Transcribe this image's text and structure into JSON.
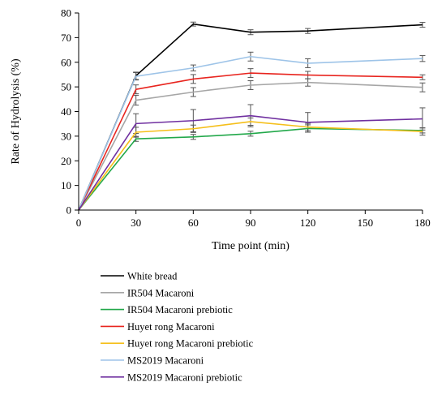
{
  "chart_data": {
    "type": "line",
    "title": "",
    "xlabel": "Time point (min)",
    "ylabel": "Rate of Hydrolysis (%)",
    "x": [
      0,
      30,
      60,
      90,
      120,
      180
    ],
    "xticks": [
      0,
      30,
      60,
      90,
      120,
      150,
      180
    ],
    "xlim": [
      0,
      180
    ],
    "yticks": [
      0,
      10,
      20,
      30,
      40,
      50,
      60,
      70,
      80
    ],
    "ylim": [
      0,
      80
    ],
    "grid": false,
    "legend_position": "bottom",
    "error_bar_color": "#555555",
    "series": [
      {
        "name": "White bread",
        "color": "#000000",
        "values": [
          0,
          54.5,
          75.5,
          72.2,
          72.7,
          75.2
        ],
        "errors": [
          0,
          1.5,
          0.8,
          1.0,
          1.0,
          1.0
        ]
      },
      {
        "name": "IR504 Macaroni",
        "color": "#a6a6a6",
        "values": [
          0,
          44.6,
          47.9,
          50.7,
          51.8,
          49.8
        ],
        "errors": [
          0,
          2.0,
          1.8,
          1.8,
          1.5,
          1.8
        ]
      },
      {
        "name": "IR504 Macaroni prebiotic",
        "color": "#22a84a",
        "values": [
          0,
          28.9,
          29.7,
          31.0,
          33.1,
          32.3
        ],
        "errors": [
          0,
          1.0,
          1.0,
          1.0,
          1.5,
          1.0
        ]
      },
      {
        "name": "Huyet rong Macaroni",
        "color": "#e8251f",
        "values": [
          0,
          49.0,
          53.2,
          55.6,
          54.8,
          53.9
        ],
        "errors": [
          0,
          1.8,
          1.8,
          1.8,
          1.5,
          1.0
        ]
      },
      {
        "name": "Huyet rong Macaroni prebiotic",
        "color": "#f5bf1a",
        "values": [
          0,
          31.6,
          33.0,
          35.9,
          33.7,
          31.9
        ],
        "errors": [
          0,
          2.0,
          1.5,
          1.5,
          1.5,
          1.5
        ]
      },
      {
        "name": "MS2019 Macaroni",
        "color": "#9ec4e8",
        "values": [
          0,
          54.3,
          57.7,
          62.3,
          59.6,
          61.5
        ],
        "errors": [
          0,
          1.5,
          1.2,
          1.8,
          1.8,
          1.2
        ]
      },
      {
        "name": "MS2019 Macaroni prebiotic",
        "color": "#7030a0",
        "values": [
          0,
          35.1,
          36.3,
          38.3,
          35.6,
          37.0
        ],
        "errors": [
          0,
          4.0,
          4.5,
          4.5,
          4.0,
          4.5
        ]
      }
    ]
  }
}
